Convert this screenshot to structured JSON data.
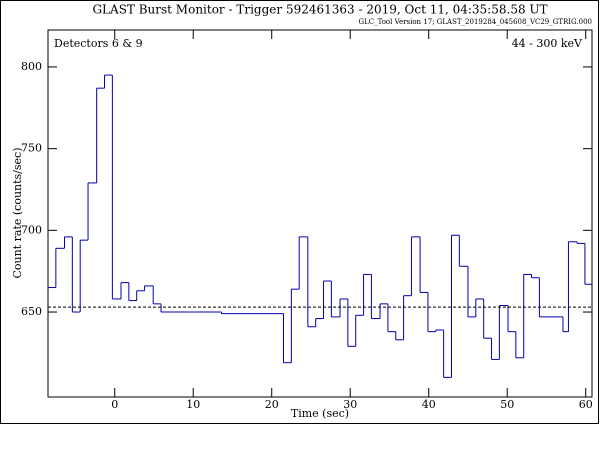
{
  "chart_data": {
    "type": "histogram",
    "title": "GLAST Burst Monitor  -  Trigger 592461363  -  2019, Oct 11, 04:35:58.58 UT",
    "subtitle": "GLC_Tool Version 17; GLAST_2019284_045608_VC29_GTRIG.000",
    "annotations": [
      "Detectors 6 & 9",
      "44 - 300 keV"
    ],
    "x_label": "Time (sec)",
    "y_label": "Count rate (counts/sec)",
    "bins": [
      -8.5,
      -7.5,
      -6.4,
      -5.4,
      -4.4,
      -3.4,
      -2.3,
      -1.3,
      -0.3,
      0.8,
      1.8,
      2.8,
      3.8,
      4.9,
      5.9,
      13.6,
      21.5,
      22.5,
      23.5,
      24.6,
      25.6,
      26.6,
      27.6,
      28.7,
      29.7,
      30.7,
      31.7,
      32.7,
      33.8,
      34.8,
      35.8,
      36.8,
      37.8,
      38.9,
      39.9,
      40.9,
      41.9,
      42.9,
      43.9,
      45.0,
      46.0,
      47.0,
      48.0,
      49.0,
      50.1,
      51.1,
      52.1,
      53.1,
      54.1,
      57.1,
      57.8,
      58.9,
      59.9,
      60.8
    ],
    "values": [
      665,
      689,
      696,
      650,
      694,
      729,
      787,
      795,
      658,
      668,
      657,
      663,
      666,
      655,
      650,
      649,
      619,
      664,
      696,
      641,
      646,
      669,
      647,
      658,
      629,
      648,
      673,
      646,
      655,
      638,
      633,
      660,
      696,
      662,
      638,
      639,
      610,
      697,
      678,
      647,
      658,
      634,
      621,
      654,
      638,
      622,
      673,
      671,
      647,
      638,
      693,
      692,
      667
    ],
    "color": "#0000aa",
    "background": 653,
    "xlim": [
      -8.5,
      60.8
    ],
    "ylim": [
      598,
      822.6
    ],
    "xticks": [
      0,
      10,
      20,
      30,
      40,
      50,
      60
    ],
    "yticks": [
      650,
      700,
      750,
      800
    ]
  }
}
